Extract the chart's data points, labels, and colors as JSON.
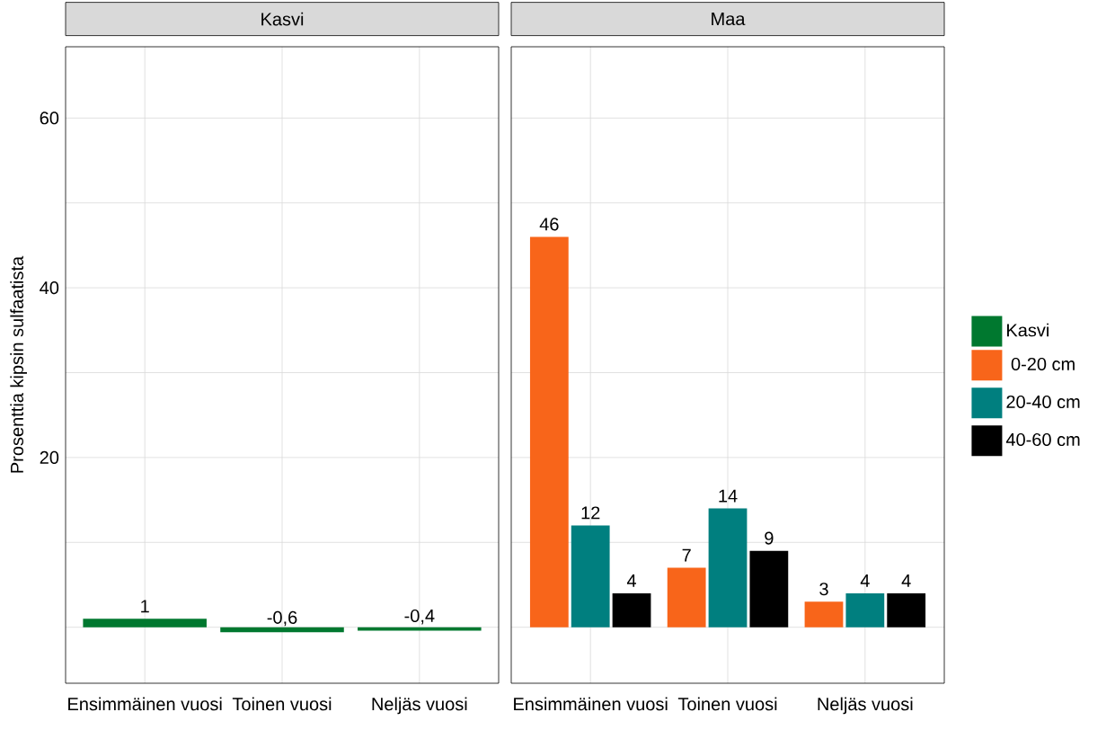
{
  "chart_data": [
    {
      "type": "bar",
      "title": "Kasvi",
      "ylabel": "Prosenttia kipsin sulfaatista",
      "categories": [
        "Ensimmäinen vuosi",
        "Toinen vuosi",
        "Neljäs vuosi"
      ],
      "series": [
        {
          "name": "Kasvi",
          "color": "#00782f",
          "values": [
            1,
            -0.6,
            -0.4
          ],
          "value_labels": [
            "1",
            "-0,6",
            "-0,4"
          ]
        }
      ],
      "ylim": [
        -6.6,
        68.4
      ],
      "yticks": [
        {
          "value": 0,
          "label": null
        },
        {
          "value": 10,
          "label": null
        },
        20,
        {
          "value": 30,
          "label": null
        },
        40,
        {
          "value": 50,
          "label": null
        },
        60
      ],
      "grid": true,
      "legend": "right"
    },
    {
      "type": "bar",
      "title": "Maa",
      "categories": [
        "Ensimmäinen vuosi",
        "Toinen vuosi",
        "Neljäs vuosi"
      ],
      "series": [
        {
          "name": "0-20 cm",
          "color": "#f8651a",
          "values": [
            46,
            7,
            3
          ],
          "value_labels": [
            "46",
            "7",
            "3"
          ]
        },
        {
          "name": "20-40 cm",
          "color": "#007f7f",
          "values": [
            12,
            14,
            4
          ],
          "value_labels": [
            "12",
            "14",
            "4"
          ]
        },
        {
          "name": "40-60 cm",
          "color": "#000000",
          "values": [
            4,
            9,
            4
          ],
          "value_labels": [
            "4",
            "9",
            "4"
          ]
        }
      ],
      "ylim": [
        -6.6,
        68.4
      ],
      "yticks": [
        {
          "value": 0,
          "label": null
        },
        {
          "value": 10,
          "label": null
        },
        20,
        {
          "value": 30,
          "label": null
        },
        40,
        {
          "value": 50,
          "label": null
        },
        60
      ],
      "grid": true,
      "legend": "right",
      "tick_labels": "x"
    }
  ]
}
